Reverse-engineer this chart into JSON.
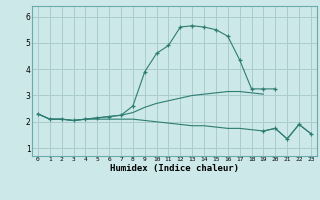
{
  "xlabel": "Humidex (Indice chaleur)",
  "bg_color": "#cce8e8",
  "grid_color": "#aacccc",
  "line_color": "#2e7d72",
  "xlim": [
    -0.5,
    23.5
  ],
  "ylim": [
    0.7,
    6.4
  ],
  "xticks": [
    0,
    1,
    2,
    3,
    4,
    5,
    6,
    7,
    8,
    9,
    10,
    11,
    12,
    13,
    14,
    15,
    16,
    17,
    18,
    19,
    20,
    21,
    22,
    23
  ],
  "yticks": [
    1,
    2,
    3,
    4,
    5,
    6
  ],
  "series0_x": [
    0,
    1,
    2,
    3,
    4,
    5,
    6,
    7,
    8,
    9,
    10,
    11,
    12,
    13,
    14,
    15,
    16,
    17,
    18,
    19,
    20
  ],
  "series0_y": [
    2.3,
    2.1,
    2.1,
    2.05,
    2.1,
    2.15,
    2.2,
    2.25,
    2.6,
    3.9,
    4.6,
    4.9,
    5.6,
    5.65,
    5.6,
    5.5,
    5.25,
    4.35,
    3.25,
    3.25,
    3.25
  ],
  "series1_x": [
    0,
    1,
    2,
    3,
    4,
    5,
    6,
    7,
    8,
    9,
    10,
    11,
    12,
    13,
    14,
    15,
    16,
    17,
    18,
    19
  ],
  "series1_y": [
    2.3,
    2.1,
    2.1,
    2.05,
    2.1,
    2.15,
    2.2,
    2.25,
    2.35,
    2.55,
    2.7,
    2.8,
    2.9,
    3.0,
    3.05,
    3.1,
    3.15,
    3.15,
    3.1,
    3.05
  ],
  "series2_x": [
    0,
    1,
    2,
    3,
    4,
    5,
    6,
    7,
    8,
    9,
    10,
    11,
    12,
    13,
    14,
    15,
    16,
    17,
    18,
    19,
    20,
    21,
    22,
    23
  ],
  "series2_y": [
    2.3,
    2.1,
    2.1,
    2.05,
    2.1,
    2.1,
    2.1,
    2.1,
    2.1,
    2.05,
    2.0,
    1.95,
    1.9,
    1.85,
    1.85,
    1.8,
    1.75,
    1.75,
    1.7,
    1.65,
    1.75,
    1.35,
    1.9,
    1.55
  ],
  "series3_x": [
    19,
    20,
    21,
    22,
    23
  ],
  "series3_y": [
    1.65,
    1.75,
    1.35,
    1.9,
    1.55
  ]
}
